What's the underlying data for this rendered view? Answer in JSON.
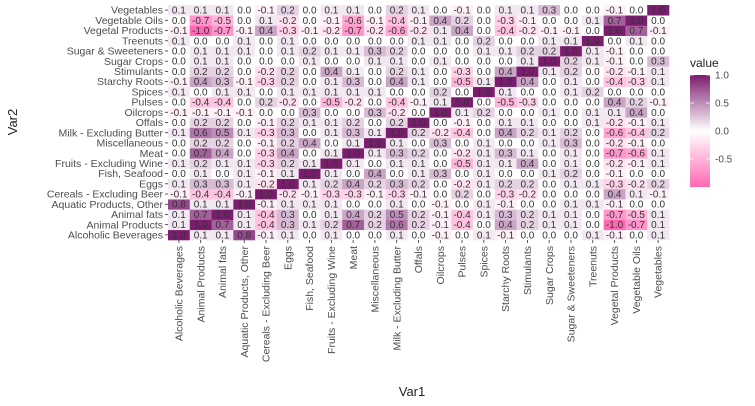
{
  "chart_data": {
    "type": "heatmap",
    "xlabel": "Var1",
    "ylabel": "Var2",
    "x_categories": [
      "Alcoholic Beverages",
      "Animal Products",
      "Animal fats",
      "Aquatic Products, Other",
      "Cereals - Excluding Beer",
      "Eggs",
      "Fish, Seafood",
      "Fruits - Excluding Wine",
      "Meat",
      "Miscellaneous",
      "Milk - Excluding Butter",
      "Offals",
      "Oilcrops",
      "Pulses",
      "Spices",
      "Starchy Roots",
      "Stimulants",
      "Sugar Crops",
      "Sugar & Sweeteners",
      "Treenuts",
      "Vegetal Products",
      "Vegetable Oils",
      "Vegetables"
    ],
    "y_categories": [
      "Alcoholic Beverages",
      "Animal Products",
      "Animal fats",
      "Aquatic Products, Other",
      "Cereals - Excluding Beer",
      "Eggs",
      "Fish, Seafood",
      "Fruits - Excluding Wine",
      "Meat",
      "Miscellaneous",
      "Milk - Excluding Butter",
      "Offals",
      "Oilcrops",
      "Pulses",
      "Spices",
      "Starchy Roots",
      "Stimulants",
      "Sugar Crops",
      "Sugar & Sweeteners",
      "Treenuts",
      "Vegetal Products",
      "Vegetable Oils",
      "Vegetables"
    ],
    "values": [
      [
        1.0,
        0.1,
        0.1,
        0.8,
        -0.1,
        0.1,
        0.0,
        0.1,
        0.0,
        0.0,
        0.1,
        0.0,
        -0.1,
        0.0,
        0.1,
        -0.1,
        0.0,
        0.0,
        0.0,
        0.1,
        -0.1,
        0.0,
        0.1
      ],
      [
        0.1,
        1.0,
        0.7,
        0.1,
        -0.4,
        0.3,
        0.1,
        0.2,
        0.7,
        0.2,
        0.6,
        0.2,
        -0.1,
        -0.4,
        0.0,
        0.4,
        0.2,
        0.1,
        0.1,
        0.0,
        -1.0,
        -0.7,
        0.1
      ],
      [
        0.1,
        0.7,
        1.0,
        0.1,
        -0.4,
        0.3,
        0.0,
        0.1,
        0.4,
        0.2,
        0.5,
        0.2,
        -0.1,
        -0.4,
        0.1,
        0.3,
        0.2,
        0.1,
        0.1,
        0.0,
        -0.7,
        -0.5,
        0.1
      ],
      [
        0.8,
        0.1,
        0.1,
        1.0,
        -0.1,
        0.1,
        0.1,
        0.1,
        0.0,
        0.0,
        0.1,
        0.0,
        -0.1,
        0.0,
        0.1,
        -0.1,
        0.0,
        0.0,
        0.1,
        0.1,
        -0.1,
        0.0,
        0.0
      ],
      [
        -0.1,
        -0.4,
        -0.4,
        -0.1,
        1.0,
        -0.2,
        -0.1,
        -0.3,
        -0.3,
        -0.1,
        -0.3,
        -0.1,
        0.0,
        0.2,
        0.0,
        -0.3,
        -0.2,
        0.0,
        0.0,
        0.0,
        0.4,
        0.1,
        -0.1
      ],
      [
        0.1,
        0.3,
        0.3,
        0.1,
        -0.2,
        1.0,
        0.1,
        0.2,
        0.4,
        0.2,
        0.3,
        0.2,
        0.0,
        -0.2,
        0.1,
        0.2,
        0.2,
        0.0,
        0.1,
        0.1,
        -0.3,
        -0.2,
        0.2
      ],
      [
        0.0,
        0.1,
        0.0,
        0.1,
        -0.1,
        0.1,
        1.0,
        0.1,
        0.0,
        0.4,
        0.0,
        0.1,
        0.3,
        0.0,
        0.1,
        0.0,
        0.0,
        0.1,
        0.2,
        0.0,
        -0.1,
        0.0,
        0.0
      ],
      [
        0.1,
        0.2,
        0.1,
        0.1,
        -0.3,
        0.2,
        0.1,
        1.0,
        0.1,
        0.0,
        0.1,
        0.1,
        0.0,
        -0.5,
        0.1,
        0.1,
        0.4,
        0.0,
        0.1,
        0.0,
        -0.2,
        -0.1,
        0.1
      ],
      [
        0.0,
        0.7,
        0.4,
        0.0,
        -0.3,
        0.4,
        0.0,
        0.1,
        1.0,
        0.1,
        0.3,
        0.2,
        0.0,
        -0.2,
        0.1,
        0.3,
        0.1,
        0.0,
        0.1,
        0.0,
        -0.7,
        -0.6,
        0.1
      ],
      [
        0.0,
        0.2,
        0.2,
        0.0,
        -0.1,
        0.2,
        0.4,
        0.0,
        0.1,
        1.0,
        0.1,
        0.0,
        0.3,
        0.0,
        0.1,
        0.0,
        0.0,
        0.1,
        0.3,
        0.0,
        -0.2,
        -0.1,
        0.0
      ],
      [
        0.1,
        0.6,
        0.5,
        0.1,
        -0.3,
        0.3,
        0.0,
        0.1,
        0.3,
        0.1,
        1.0,
        0.2,
        -0.2,
        -0.4,
        0.0,
        0.4,
        0.2,
        0.1,
        0.2,
        0.0,
        -0.6,
        -0.4,
        0.2
      ],
      [
        0.0,
        0.2,
        0.2,
        0.0,
        -0.1,
        0.2,
        0.1,
        0.1,
        0.2,
        0.0,
        0.2,
        1.0,
        0.0,
        -0.1,
        0.0,
        0.1,
        0.1,
        0.0,
        0.0,
        0.1,
        -0.2,
        -0.1,
        0.1
      ],
      [
        -0.1,
        -0.1,
        -0.1,
        -0.1,
        0.0,
        0.0,
        0.3,
        0.0,
        0.0,
        0.3,
        -0.2,
        0.0,
        1.0,
        0.1,
        0.2,
        0.0,
        0.0,
        0.1,
        0.0,
        0.1,
        0.1,
        0.4,
        0.0
      ],
      [
        0.0,
        -0.4,
        -0.4,
        0.0,
        0.2,
        -0.2,
        0.0,
        -0.5,
        -0.2,
        0.0,
        -0.4,
        -0.1,
        0.1,
        1.0,
        0.0,
        -0.5,
        -0.3,
        0.0,
        0.0,
        0.0,
        0.4,
        0.2,
        -0.1
      ],
      [
        0.1,
        0.0,
        0.1,
        0.1,
        0.0,
        0.1,
        0.1,
        0.1,
        0.1,
        0.1,
        0.0,
        0.0,
        0.2,
        0.0,
        1.0,
        0.1,
        0.0,
        0.0,
        0.1,
        0.2,
        0.0,
        0.0,
        0.0
      ],
      [
        -0.1,
        0.4,
        0.3,
        -0.1,
        -0.3,
        0.2,
        0.0,
        0.1,
        0.3,
        0.0,
        0.4,
        0.1,
        0.0,
        -0.5,
        0.1,
        1.0,
        0.4,
        0.0,
        0.1,
        0.0,
        -0.4,
        -0.3,
        0.1
      ],
      [
        0.0,
        0.2,
        0.2,
        0.0,
        -0.2,
        0.2,
        0.0,
        0.4,
        0.1,
        0.0,
        0.2,
        0.1,
        0.0,
        -0.3,
        0.0,
        0.4,
        1.0,
        0.1,
        0.2,
        0.0,
        -0.2,
        -0.1,
        0.1
      ],
      [
        0.0,
        0.1,
        0.1,
        0.0,
        0.0,
        0.0,
        0.1,
        0.0,
        0.0,
        0.1,
        0.1,
        0.0,
        0.1,
        0.0,
        0.0,
        0.0,
        0.1,
        1.0,
        0.2,
        0.1,
        -0.1,
        0.0,
        0.3
      ],
      [
        0.0,
        0.1,
        0.1,
        0.1,
        0.0,
        0.1,
        0.2,
        0.1,
        0.1,
        0.3,
        0.2,
        0.0,
        0.0,
        0.0,
        0.1,
        0.1,
        0.2,
        0.2,
        1.0,
        0.1,
        -0.1,
        0.0,
        0.0
      ],
      [
        0.1,
        0.0,
        0.0,
        0.1,
        0.0,
        0.1,
        0.0,
        0.0,
        0.0,
        0.0,
        0.0,
        0.1,
        0.1,
        0.0,
        0.2,
        0.0,
        0.0,
        0.1,
        0.1,
        1.0,
        0.0,
        0.1,
        0.0
      ],
      [
        -0.1,
        -1.0,
        -0.7,
        -0.1,
        0.4,
        -0.3,
        -0.1,
        -0.2,
        -0.7,
        -0.2,
        -0.6,
        -0.2,
        0.1,
        0.4,
        0.0,
        -0.4,
        -0.2,
        -0.1,
        -0.1,
        0.0,
        1.0,
        0.7,
        -0.1
      ],
      [
        0.0,
        -0.7,
        -0.5,
        0.0,
        0.1,
        -0.2,
        0.0,
        -0.1,
        -0.6,
        -0.1,
        -0.4,
        -0.1,
        0.4,
        0.2,
        0.0,
        -0.3,
        -0.1,
        0.0,
        0.0,
        0.1,
        0.7,
        1.0,
        0.0
      ],
      [
        0.1,
        0.1,
        0.1,
        0.0,
        -0.1,
        0.2,
        0.0,
        0.1,
        0.1,
        0.0,
        0.2,
        0.1,
        0.0,
        -0.1,
        0.0,
        0.1,
        0.1,
        0.3,
        0.0,
        0.0,
        -0.1,
        0.0,
        1.0
      ]
    ],
    "cell_label_format": "one decimal, leading zero omitted for negatives (e.g. -.4 shown as -0.4)",
    "color_scale": {
      "low_color": "#ff69b4",
      "mid_color": "#ffffff",
      "high_color": "#7b1c6e",
      "range": [
        -1,
        1
      ]
    },
    "legend": {
      "title": "value",
      "ticks": [
        1.0,
        0.5,
        0.0,
        -0.5
      ],
      "tick_labels": [
        "1.0",
        "0.5",
        "0.0",
        "-0.5"
      ],
      "placement": "right"
    },
    "panel_background": "#ebebeb"
  }
}
